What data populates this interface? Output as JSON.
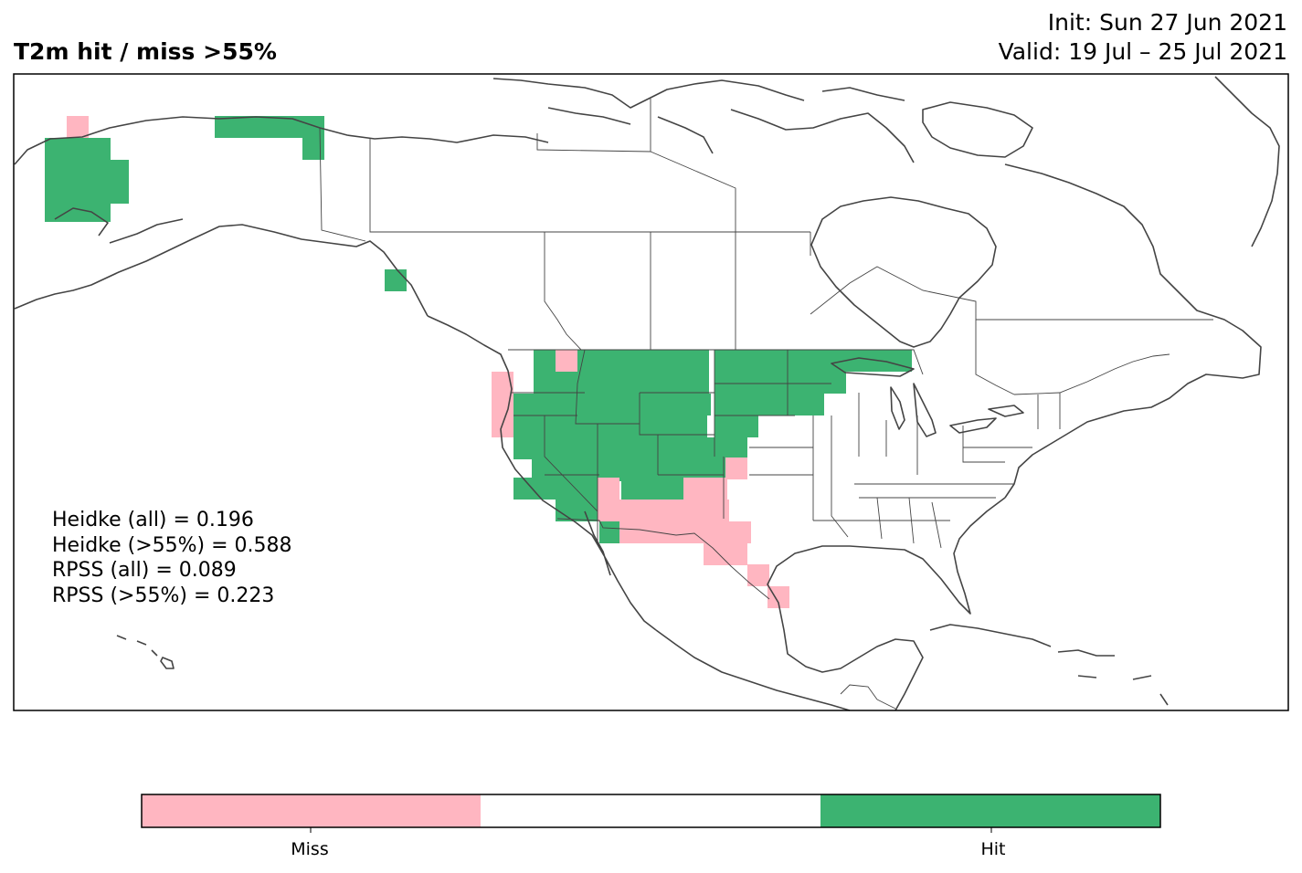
{
  "header": {
    "title": "T2m hit / miss  >55%",
    "init": "Init: Sun 27 Jun 2021",
    "valid": "Valid: 19 Jul – 25 Jul 2021"
  },
  "stats": [
    "Heidke (all) = 0.196",
    "Heidke (>55%) = 0.588",
    "RPSS (all) = 0.089",
    "RPSS (>55%) = 0.223"
  ],
  "colorbar": {
    "labels": [
      "Miss",
      "Hit"
    ],
    "colors": [
      "#ffb6c1",
      "#ffffff",
      "#3cb371"
    ]
  },
  "legend_colors": {
    "hit": "#3cb371",
    "miss": "#ffb6c1"
  },
  "grid_cells": {
    "hit": [
      [
        49,
        151
      ],
      [
        73,
        151
      ],
      [
        97,
        151
      ],
      [
        49,
        175
      ],
      [
        73,
        175
      ],
      [
        97,
        175
      ],
      [
        117,
        175
      ],
      [
        49,
        199
      ],
      [
        73,
        199
      ],
      [
        97,
        199
      ],
      [
        117,
        199
      ],
      [
        49,
        219
      ],
      [
        73,
        219
      ],
      [
        97,
        219
      ],
      [
        235,
        127
      ],
      [
        259,
        127
      ],
      [
        283,
        127
      ],
      [
        307,
        127
      ],
      [
        331,
        127
      ],
      [
        331,
        151
      ],
      [
        421,
        295
      ],
      [
        584,
        383
      ],
      [
        632,
        383
      ],
      [
        656,
        383
      ],
      [
        680,
        383
      ],
      [
        704,
        383
      ],
      [
        728,
        383
      ],
      [
        752,
        383
      ],
      [
        782,
        383
      ],
      [
        806,
        383
      ],
      [
        830,
        383
      ],
      [
        854,
        383
      ],
      [
        878,
        383
      ],
      [
        902,
        383
      ],
      [
        926,
        383
      ],
      [
        950,
        383
      ],
      [
        974,
        383
      ],
      [
        584,
        407
      ],
      [
        608,
        407
      ],
      [
        632,
        407
      ],
      [
        656,
        407
      ],
      [
        680,
        407
      ],
      [
        704,
        407
      ],
      [
        728,
        407
      ],
      [
        752,
        407
      ],
      [
        782,
        407
      ],
      [
        806,
        407
      ],
      [
        830,
        407
      ],
      [
        854,
        407
      ],
      [
        878,
        407
      ],
      [
        902,
        407
      ],
      [
        538,
        431
      ],
      [
        562,
        431
      ],
      [
        586,
        431
      ],
      [
        610,
        431
      ],
      [
        634,
        431
      ],
      [
        658,
        431
      ],
      [
        682,
        431
      ],
      [
        706,
        431
      ],
      [
        730,
        431
      ],
      [
        754,
        431
      ],
      [
        782,
        431
      ],
      [
        806,
        431
      ],
      [
        830,
        431
      ],
      [
        854,
        431
      ],
      [
        878,
        431
      ],
      [
        558,
        455
      ],
      [
        582,
        455
      ],
      [
        606,
        455
      ],
      [
        630,
        455
      ],
      [
        654,
        455
      ],
      [
        678,
        455
      ],
      [
        702,
        455
      ],
      [
        726,
        455
      ],
      [
        750,
        455
      ],
      [
        782,
        455
      ],
      [
        806,
        455
      ],
      [
        562,
        479
      ],
      [
        586,
        479
      ],
      [
        610,
        479
      ],
      [
        634,
        479
      ],
      [
        658,
        479
      ],
      [
        682,
        479
      ],
      [
        706,
        479
      ],
      [
        730,
        479
      ],
      [
        754,
        479
      ],
      [
        778,
        479
      ],
      [
        794,
        479
      ],
      [
        582,
        503
      ],
      [
        606,
        503
      ],
      [
        630,
        503
      ],
      [
        654,
        503
      ],
      [
        678,
        503
      ],
      [
        702,
        503
      ],
      [
        726,
        503
      ],
      [
        750,
        503
      ],
      [
        770,
        503
      ],
      [
        562,
        523
      ],
      [
        586,
        523
      ],
      [
        610,
        523
      ],
      [
        634,
        523
      ],
      [
        680,
        523
      ],
      [
        704,
        523
      ],
      [
        728,
        523
      ],
      [
        608,
        547
      ],
      [
        632,
        547
      ],
      [
        656,
        571
      ]
    ],
    "miss": [
      [
        73,
        127
      ],
      [
        608,
        383
      ],
      [
        538,
        407
      ],
      [
        538,
        431
      ],
      [
        538,
        455
      ],
      [
        654,
        523
      ],
      [
        748,
        523
      ],
      [
        772,
        523
      ],
      [
        794,
        501
      ],
      [
        654,
        547
      ],
      [
        678,
        547
      ],
      [
        702,
        547
      ],
      [
        726,
        547
      ],
      [
        750,
        547
      ],
      [
        774,
        547
      ],
      [
        678,
        571
      ],
      [
        702,
        571
      ],
      [
        726,
        571
      ],
      [
        750,
        571
      ],
      [
        774,
        571
      ],
      [
        798,
        571
      ],
      [
        770,
        595
      ],
      [
        794,
        595
      ],
      [
        818,
        618
      ],
      [
        840,
        642
      ]
    ]
  }
}
